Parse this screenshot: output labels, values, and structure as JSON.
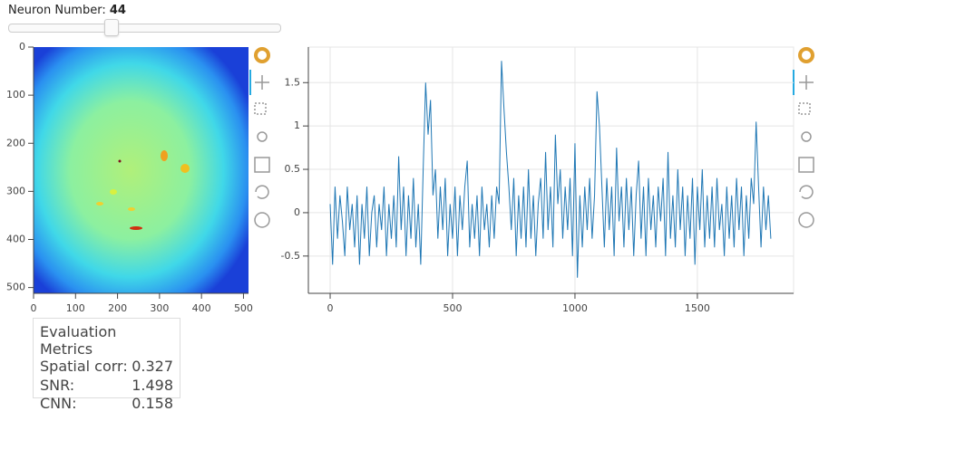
{
  "slider": {
    "label": "Neuron Number:",
    "value": 44
  },
  "chart_data": [
    {
      "type": "image",
      "xlim": [
        0,
        512
      ],
      "ylim": [
        512,
        0
      ],
      "xticks": [
        0,
        100,
        200,
        300,
        400,
        500
      ],
      "yticks": [
        0,
        100,
        200,
        300,
        400,
        500
      ]
    },
    {
      "type": "line",
      "color": "#1f77b4",
      "grid": true,
      "xlim": [
        -89,
        1893
      ],
      "ylim": [
        -0.93,
        1.91
      ],
      "xticks": [
        0,
        500,
        1000,
        1500
      ],
      "yticks": [
        -0.5,
        0,
        0.5,
        1,
        1.5
      ],
      "x": [
        0,
        10,
        20,
        30,
        40,
        50,
        60,
        70,
        80,
        90,
        100,
        110,
        120,
        130,
        140,
        150,
        160,
        170,
        180,
        190,
        200,
        210,
        220,
        230,
        240,
        250,
        260,
        270,
        280,
        290,
        300,
        310,
        320,
        330,
        340,
        350,
        360,
        370,
        380,
        390,
        400,
        410,
        420,
        430,
        440,
        450,
        460,
        470,
        480,
        490,
        500,
        510,
        520,
        530,
        540,
        550,
        560,
        570,
        580,
        590,
        600,
        610,
        620,
        630,
        640,
        650,
        660,
        670,
        680,
        690,
        700,
        710,
        720,
        730,
        740,
        750,
        760,
        770,
        780,
        790,
        800,
        810,
        820,
        830,
        840,
        850,
        860,
        870,
        880,
        890,
        900,
        910,
        920,
        930,
        940,
        950,
        960,
        970,
        980,
        990,
        1000,
        1010,
        1020,
        1030,
        1040,
        1050,
        1060,
        1070,
        1080,
        1090,
        1100,
        1110,
        1120,
        1130,
        1140,
        1150,
        1160,
        1170,
        1180,
        1190,
        1200,
        1210,
        1220,
        1230,
        1240,
        1250,
        1260,
        1270,
        1280,
        1290,
        1300,
        1310,
        1320,
        1330,
        1340,
        1350,
        1360,
        1370,
        1380,
        1390,
        1400,
        1410,
        1420,
        1430,
        1440,
        1450,
        1460,
        1470,
        1480,
        1490,
        1500,
        1510,
        1520,
        1530,
        1540,
        1550,
        1560,
        1570,
        1580,
        1590,
        1600,
        1610,
        1620,
        1630,
        1640,
        1650,
        1660,
        1670,
        1680,
        1690,
        1700,
        1710,
        1720,
        1730,
        1740,
        1750,
        1760,
        1770,
        1780,
        1790,
        1800
      ],
      "values": [
        0.1,
        -0.6,
        0.3,
        -0.3,
        0.2,
        -0.1,
        -0.5,
        0.3,
        -0.2,
        0.1,
        -0.4,
        0.2,
        -0.6,
        0.1,
        -0.3,
        0.3,
        -0.5,
        0.0,
        0.2,
        -0.4,
        0.1,
        -0.2,
        0.3,
        -0.5,
        0.1,
        -0.3,
        0.2,
        -0.4,
        0.65,
        -0.2,
        0.3,
        -0.5,
        0.2,
        -0.3,
        0.4,
        -0.4,
        0.1,
        -0.6,
        0.5,
        1.5,
        0.9,
        1.3,
        0.2,
        0.5,
        -0.3,
        0.3,
        -0.2,
        0.4,
        -0.5,
        0.1,
        -0.3,
        0.3,
        -0.5,
        0.2,
        -0.2,
        0.3,
        0.6,
        -0.4,
        0.1,
        -0.3,
        0.2,
        -0.5,
        0.3,
        -0.2,
        0.1,
        -0.4,
        0.2,
        -0.3,
        0.3,
        0.1,
        1.75,
        1.2,
        0.7,
        0.3,
        -0.2,
        0.4,
        -0.5,
        0.2,
        -0.3,
        0.3,
        -0.4,
        0.5,
        -0.3,
        0.2,
        -0.5,
        0.1,
        0.4,
        -0.3,
        0.7,
        -0.2,
        0.3,
        -0.4,
        0.9,
        0.1,
        0.5,
        -0.3,
        0.3,
        -0.2,
        0.4,
        -0.5,
        0.8,
        -0.75,
        0.2,
        -0.4,
        0.3,
        -0.2,
        0.4,
        -0.3,
        0.2,
        1.4,
        1.0,
        0.3,
        -0.4,
        0.4,
        -0.2,
        0.3,
        -0.5,
        0.75,
        -0.1,
        0.3,
        -0.4,
        0.4,
        -0.2,
        0.3,
        -0.5,
        0.2,
        0.6,
        -0.3,
        0.3,
        -0.5,
        0.4,
        -0.2,
        0.2,
        -0.4,
        0.3,
        -0.1,
        0.4,
        -0.5,
        0.7,
        -0.3,
        0.2,
        -0.4,
        0.5,
        -0.2,
        0.3,
        -0.5,
        0.2,
        -0.3,
        0.4,
        -0.6,
        0.3,
        -0.2,
        0.5,
        -0.4,
        0.2,
        -0.3,
        0.3,
        -0.4,
        0.4,
        -0.2,
        0.1,
        -0.5,
        0.3,
        -0.3,
        0.2,
        -0.4,
        0.4,
        -0.2,
        0.3,
        -0.5,
        0.2,
        -0.3,
        0.4,
        0.1,
        1.05,
        0.3,
        -0.4,
        0.3,
        -0.2,
        0.2,
        -0.3
      ]
    }
  ],
  "metrics": {
    "title": "Evaluation Metrics",
    "rows": [
      [
        "Spatial corr:",
        0.327
      ],
      [
        "SNR:",
        1.498
      ],
      [
        "CNN:",
        0.158
      ]
    ]
  }
}
